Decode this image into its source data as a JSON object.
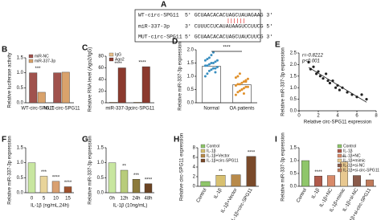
{
  "sequence_panel": {
    "label": "A",
    "rows": [
      {
        "name": "WT-circ-SPG11",
        "seq": "5' GCUAACACACUAGCUAUAGAAG 3'"
      },
      {
        "name": "miR-337-3p",
        "seq": "3' CUUUCCUCAUAUAAGUCCUUCG 5'"
      },
      {
        "name": "MUT-circ-SPG11",
        "seq": "5' GCUAACACACUAGCUAUCUUCG 3'"
      }
    ],
    "pairing": "||||||"
  },
  "chart_data": [
    {
      "panel": "B",
      "type": "bar",
      "ylabel": "Relative luciferase activity",
      "categories": [
        "WT-circ-SPG11",
        "MUT-circ-SPG11"
      ],
      "series": [
        {
          "name": "miR-NC",
          "color": "#a0524d",
          "values": [
            1.0,
            1.0
          ]
        },
        {
          "name": "miR-337-3p",
          "color": "#d9a26b",
          "values": [
            0.35,
            1.02
          ]
        }
      ],
      "annotations": [
        "***",
        null
      ],
      "ylim": [
        0,
        1.5
      ],
      "yticks": [
        {
          "value": 0,
          "label": "0.0"
        },
        0.5,
        {
          "value": 1,
          "label": "1.0"
        },
        1.5
      ],
      "legend": "top-left"
    },
    {
      "panel": "C",
      "type": "bar",
      "ylabel": "Relative RNA level (Ago2/IgG)",
      "categories": [
        "miR-337-3p",
        "circ-SPG11"
      ],
      "series": [
        {
          "name": "IgG",
          "color": "#e8c08a",
          "values": [
            1,
            1
          ]
        },
        {
          "name": "Ago2",
          "color": "#8b3a2e",
          "values": [
            60,
            62
          ]
        }
      ],
      "annotations": [
        "****",
        "****"
      ],
      "ylim": [
        0,
        80
      ],
      "yticks": [
        0,
        20,
        40,
        60,
        80
      ],
      "legend": "top-left"
    },
    {
      "panel": "D",
      "type": "dot-bar",
      "ylabel": "Relative miR-337-3p expression",
      "categories": [
        "Normal",
        "OA patients"
      ],
      "values": [
        1.38,
        0.68
      ],
      "colors": [
        "#3a8fc0",
        "#e0902a"
      ],
      "points": [
        [
          1.0,
          1.1,
          1.2,
          1.25,
          1.3,
          1.3,
          1.35,
          1.4,
          1.4,
          1.45,
          1.5,
          1.5,
          1.55,
          1.6,
          1.6,
          1.65,
          1.7,
          1.8,
          1.9,
          1.15
        ],
        [
          0.3,
          0.4,
          0.45,
          0.5,
          0.55,
          0.6,
          0.6,
          0.65,
          0.7,
          0.7,
          0.75,
          0.8,
          0.85,
          0.9,
          0.95,
          1.0,
          1.1,
          0.5,
          0.35,
          0.8
        ]
      ],
      "annotation": "****",
      "ylim": [
        0,
        2
      ],
      "yticks": [
        {
          "value": 0,
          "label": "0.0"
        },
        0.5,
        {
          "value": 1,
          "label": "1.0"
        },
        1.5,
        {
          "value": 2,
          "label": "2.0"
        }
      ]
    },
    {
      "panel": "E",
      "type": "scatter",
      "xlabel": "Relative circ-SPG11 expression",
      "ylabel": "Relative miR-337-3p expression",
      "x": [
        1,
        1.2,
        1.5,
        1.8,
        2,
        2.2,
        2.5,
        2.8,
        3,
        3.2,
        3.5,
        3.8,
        4,
        4.2,
        4.5,
        5,
        5.5,
        6,
        6.5,
        7
      ],
      "y": [
        2.1,
        1.8,
        1.9,
        1.6,
        1.7,
        1.5,
        1.4,
        1.6,
        1.3,
        1.2,
        1.3,
        1.0,
        1.1,
        0.9,
        1.0,
        0.8,
        0.7,
        0.6,
        0.7,
        0.5
      ],
      "color": "#222222",
      "stats": [
        "r=-0.8212",
        "p<0.001"
      ],
      "xlim": [
        0,
        8
      ],
      "xticks": [
        0,
        2,
        4,
        6,
        8
      ],
      "ylim": [
        0,
        2.5
      ],
      "yticks": [
        {
          "value": 0,
          "label": "0.0"
        },
        0.5,
        {
          "value": 1,
          "label": "1.0"
        },
        1.5,
        {
          "value": 2,
          "label": "2.0"
        },
        2.5
      ]
    },
    {
      "panel": "F",
      "type": "bar",
      "ylabel": "Relative miR-337-3p expression",
      "xlabel": "IL-1β (ng/mL,24h)",
      "categories": [
        "0",
        "5",
        "10",
        "15"
      ],
      "values": [
        1.0,
        0.55,
        0.38,
        0.2
      ],
      "colors": [
        "#c8e6a0",
        "#e8d49a",
        "#d9a070",
        "#a0522d"
      ],
      "annotations": [
        null,
        "***",
        "****",
        "****"
      ],
      "ylim": [
        0,
        1.5
      ],
      "yticks": [
        {
          "value": 0,
          "label": "0.0"
        },
        0.5,
        {
          "value": 1,
          "label": "1.0"
        },
        1.5
      ]
    },
    {
      "panel": "G",
      "type": "bar",
      "ylabel": "Relative miR-337-3p expression",
      "xlabel": "IL-1β (10ng/mL)",
      "categories": [
        "0h",
        "12h",
        "24h",
        "48h"
      ],
      "values": [
        1.0,
        0.75,
        0.45,
        0.3
      ],
      "colors": [
        "#c8e6a0",
        "#b8cc7a",
        "#8c7a3a",
        "#6b4423"
      ],
      "annotations": [
        null,
        "**",
        "***",
        "****"
      ],
      "ylim": [
        0,
        1.5
      ],
      "yticks": [
        {
          "value": 0,
          "label": "0.0"
        },
        0.5,
        {
          "value": 1,
          "label": "1.0"
        },
        1.5
      ]
    },
    {
      "panel": "H",
      "type": "bar",
      "ylabel": "Relative circ-SPG11 expression",
      "categories": [
        "Control",
        "IL-1β",
        "IL-1β+Vector",
        "IL-1β+circ-SPG11"
      ],
      "values": [
        1.0,
        2.3,
        2.4,
        6.2
      ],
      "colors": [
        "#8fc66a",
        "#d8c070",
        "#b88a4a",
        "#7a4a2a"
      ],
      "annotations": [
        null,
        "**",
        null,
        "****"
      ],
      "ylim": [
        0,
        8
      ],
      "yticks": [
        0,
        2,
        4,
        6,
        8
      ],
      "legend": "top-left",
      "rotate_labels": true
    },
    {
      "panel": "I",
      "type": "bar",
      "ylabel": "Relative miR-337-3p expression",
      "categories": [
        "Control",
        "IL-1β",
        "IL-1β+NC",
        "IL-1β+mimic",
        "IL-1β+si-NC",
        "IL-1β+si-circ-SPG11"
      ],
      "values": [
        1.0,
        0.4,
        0.42,
        0.95,
        0.42,
        0.25
      ],
      "colors": [
        "#8fc66a",
        "#b05a4a",
        "#d88a6a",
        "#e8c890",
        "#8a5a4a",
        "#c07a5a"
      ],
      "annotations": [
        null,
        "****",
        null,
        "**",
        null,
        "*"
      ],
      "ylim": [
        0,
        1.5
      ],
      "yticks": [
        {
          "value": 0,
          "label": "0.0"
        },
        0.5,
        {
          "value": 1,
          "label": "1.0"
        },
        1.5
      ],
      "legend": "top-right",
      "rotate_labels": true
    }
  ]
}
